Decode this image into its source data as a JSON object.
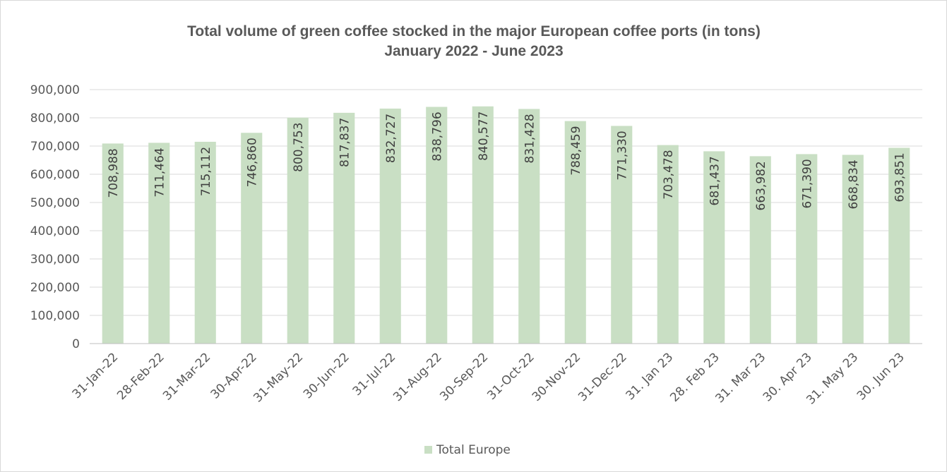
{
  "chart_data": {
    "type": "bar",
    "title": "Total volume of green coffee stocked in the major European coffee ports (in tons)",
    "subtitle": "January 2022 - June 2023",
    "xlabel": "",
    "ylabel": "",
    "ylim": [
      0,
      900000
    ],
    "y_ticks": [
      "0",
      "100,000",
      "200,000",
      "300,000",
      "400,000",
      "500,000",
      "600,000",
      "700,000",
      "800,000",
      "900,000"
    ],
    "grid": true,
    "legend_position": "bottom",
    "categories": [
      "31-Jan-22",
      "28-Feb-22",
      "31-Mar-22",
      "30-Apr-22",
      "31-May-22",
      "30-Jun-22",
      "31-Jul-22",
      "31-Aug-22",
      "30-Sep-22",
      "31-Oct-22",
      "30-Nov-22",
      "31-Dec-22",
      "31. Jan 23",
      "28. Feb 23",
      "31. Mar 23",
      "30. Apr 23",
      "31. May 23",
      "30. Jun 23"
    ],
    "series": [
      {
        "name": "Total Europe",
        "color": "#c9dfc4",
        "values": [
          708988,
          711464,
          715112,
          746860,
          800753,
          817837,
          832727,
          838796,
          840577,
          831428,
          788459,
          771330,
          703478,
          681437,
          663982,
          671390,
          668834,
          693851
        ],
        "labels": [
          "708,988",
          "711,464",
          "715,112",
          "746,860",
          "800,753",
          "817,837",
          "832,727",
          "838,796",
          "840,577",
          "831,428",
          "788,459",
          "771,330",
          "703,478",
          "681,437",
          "663,982",
          "671,390",
          "668,834",
          "693,851"
        ]
      }
    ]
  },
  "colors": {
    "grid": "#d9d9d9",
    "axis": "#bfbfbf",
    "text": "#595959",
    "bar": "#c9dfc4"
  }
}
